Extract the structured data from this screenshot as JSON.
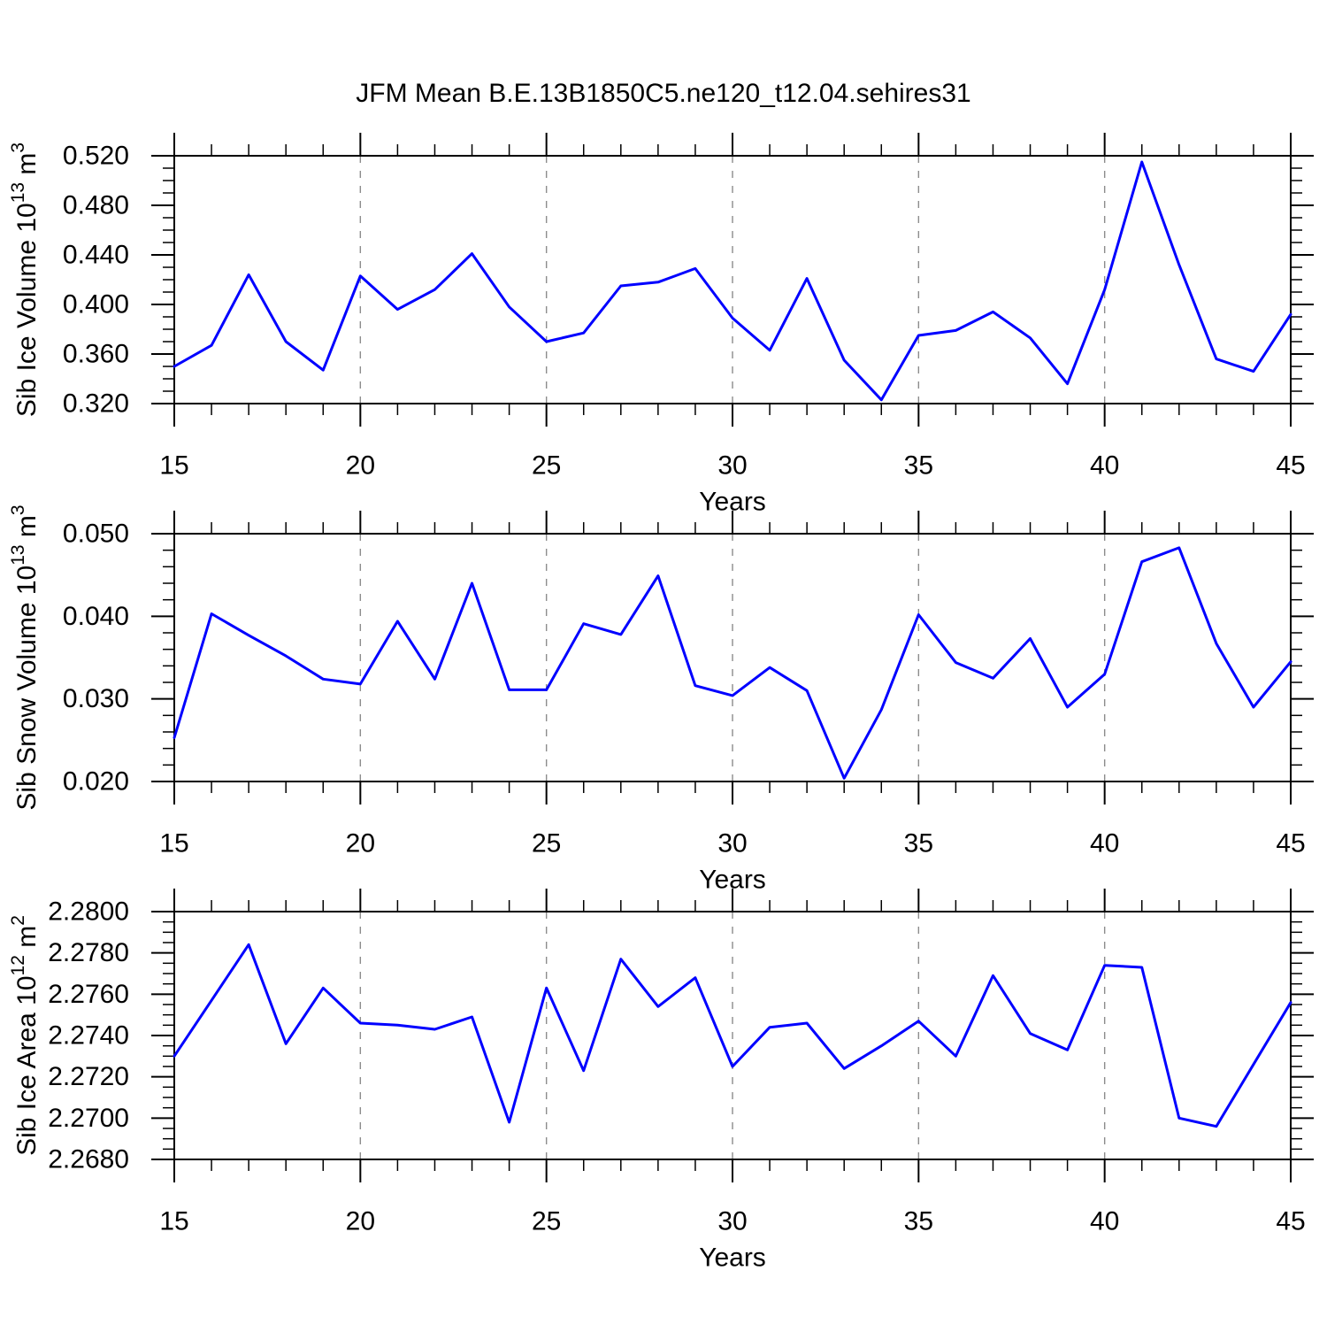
{
  "title": "JFM Mean B.E.13B1850C5.ne120_t12.04.sehires31",
  "line_color": "#0000ff",
  "grid_color": "#8c8c8c",
  "frame_color": "#000000",
  "chart_data": [
    {
      "type": "line",
      "key": "sib-ice-volume",
      "ylabel": "Sib Ice Volume 10^13 m^3",
      "ylabel_parts": [
        {
          "t": "Sib Ice Volume 10"
        },
        {
          "t": "13",
          "sup": true
        },
        {
          "t": " m"
        },
        {
          "t": "3",
          "sup": true
        }
      ],
      "xlabel": "Years",
      "xlim": [
        15,
        45
      ],
      "ylim": [
        0.32,
        0.52
      ],
      "ytick_step": 0.04,
      "ytick_minor": 0.01,
      "xtick_minor": 1,
      "grid_years": [
        20,
        25,
        30,
        35,
        40
      ],
      "yticks": [
        {
          "v": 0.52,
          "label": "0.520"
        },
        {
          "v": 0.48,
          "label": "0.480"
        },
        {
          "v": 0.44,
          "label": "0.440"
        },
        {
          "v": 0.4,
          "label": "0.400"
        },
        {
          "v": 0.36,
          "label": "0.360"
        },
        {
          "v": 0.32,
          "label": "0.320"
        }
      ],
      "xticks": [
        {
          "v": 15,
          "label": "15"
        },
        {
          "v": 20,
          "label": "20"
        },
        {
          "v": 25,
          "label": "25"
        },
        {
          "v": 30,
          "label": "30"
        },
        {
          "v": 35,
          "label": "35"
        },
        {
          "v": 40,
          "label": "40"
        },
        {
          "v": 45,
          "label": "45"
        }
      ],
      "x": [
        15,
        16,
        17,
        18,
        19,
        20,
        21,
        22,
        23,
        24,
        25,
        26,
        27,
        28,
        29,
        30,
        31,
        32,
        33,
        34,
        35,
        36,
        37,
        38,
        39,
        40,
        41,
        42,
        43,
        44,
        45
      ],
      "values": [
        0.35,
        0.367,
        0.424,
        0.37,
        0.347,
        0.423,
        0.396,
        0.412,
        0.441,
        0.398,
        0.37,
        0.377,
        0.415,
        0.418,
        0.429,
        0.389,
        0.363,
        0.421,
        0.355,
        0.323,
        0.375,
        0.379,
        0.394,
        0.373,
        0.336,
        0.412,
        0.515,
        0.432,
        0.356,
        0.346,
        0.392
      ]
    },
    {
      "type": "line",
      "key": "sib-snow-volume",
      "ylabel": "Sib Snow Volume 10^13 m^3",
      "ylabel_parts": [
        {
          "t": "Sib Snow Volume 10"
        },
        {
          "t": "13",
          "sup": true
        },
        {
          "t": " m"
        },
        {
          "t": "3",
          "sup": true
        }
      ],
      "xlabel": "Years",
      "xlim": [
        15,
        45
      ],
      "ylim": [
        0.02,
        0.05
      ],
      "ytick_step": 0.01,
      "ytick_minor": 0.002,
      "xtick_minor": 1,
      "grid_years": [
        20,
        25,
        30,
        35,
        40
      ],
      "yticks": [
        {
          "v": 0.05,
          "label": "0.050"
        },
        {
          "v": 0.04,
          "label": "0.040"
        },
        {
          "v": 0.03,
          "label": "0.030"
        },
        {
          "v": 0.02,
          "label": "0.020"
        }
      ],
      "xticks": [
        {
          "v": 15,
          "label": "15"
        },
        {
          "v": 20,
          "label": "20"
        },
        {
          "v": 25,
          "label": "25"
        },
        {
          "v": 30,
          "label": "30"
        },
        {
          "v": 35,
          "label": "35"
        },
        {
          "v": 40,
          "label": "40"
        },
        {
          "v": 45,
          "label": "45"
        }
      ],
      "x": [
        15,
        16,
        17,
        18,
        19,
        20,
        21,
        22,
        23,
        24,
        25,
        26,
        27,
        28,
        29,
        30,
        31,
        32,
        33,
        34,
        35,
        36,
        37,
        38,
        39,
        40,
        41,
        42,
        43,
        44,
        45
      ],
      "values": [
        0.0253,
        0.0403,
        0.0377,
        0.0352,
        0.0324,
        0.0318,
        0.0394,
        0.0324,
        0.044,
        0.0311,
        0.0311,
        0.0391,
        0.0378,
        0.0449,
        0.0316,
        0.0304,
        0.0338,
        0.031,
        0.0204,
        0.0287,
        0.0402,
        0.0344,
        0.0325,
        0.0373,
        0.029,
        0.033,
        0.0466,
        0.0483,
        0.0367,
        0.029,
        0.0345
      ]
    },
    {
      "type": "line",
      "key": "sib-ice-area",
      "ylabel": "Sib Ice Area 10^12 m^2",
      "ylabel_parts": [
        {
          "t": "Sib Ice Area 10"
        },
        {
          "t": "12",
          "sup": true
        },
        {
          "t": " m"
        },
        {
          "t": "2",
          "sup": true
        }
      ],
      "xlabel": "Years",
      "xlim": [
        15,
        45
      ],
      "ylim": [
        2.268,
        2.28
      ],
      "ytick_step": 0.002,
      "ytick_minor": 0.0005,
      "xtick_minor": 1,
      "grid_years": [
        20,
        25,
        30,
        35,
        40
      ],
      "yticks": [
        {
          "v": 2.28,
          "label": "2.2800"
        },
        {
          "v": 2.278,
          "label": "2.2780"
        },
        {
          "v": 2.276,
          "label": "2.2760"
        },
        {
          "v": 2.274,
          "label": "2.2740"
        },
        {
          "v": 2.272,
          "label": "2.2720"
        },
        {
          "v": 2.27,
          "label": "2.2700"
        },
        {
          "v": 2.268,
          "label": "2.2680"
        }
      ],
      "xticks": [
        {
          "v": 15,
          "label": "15"
        },
        {
          "v": 20,
          "label": "20"
        },
        {
          "v": 25,
          "label": "25"
        },
        {
          "v": 30,
          "label": "30"
        },
        {
          "v": 35,
          "label": "35"
        },
        {
          "v": 40,
          "label": "40"
        },
        {
          "v": 45,
          "label": "45"
        }
      ],
      "x": [
        15,
        16,
        17,
        18,
        19,
        20,
        21,
        22,
        23,
        24,
        25,
        26,
        27,
        28,
        29,
        30,
        31,
        32,
        33,
        34,
        35,
        36,
        37,
        38,
        39,
        40,
        41,
        42,
        43,
        44,
        45
      ],
      "values": [
        2.273,
        2.2757,
        2.2784,
        2.2736,
        2.2763,
        2.2746,
        2.2745,
        2.2743,
        2.2749,
        2.2698,
        2.2763,
        2.2723,
        2.2777,
        2.2754,
        2.2768,
        2.2725,
        2.2744,
        2.2746,
        2.2724,
        2.2735,
        2.2747,
        2.273,
        2.2769,
        2.2741,
        2.2733,
        2.2774,
        2.2773,
        2.27,
        2.2696,
        2.2726,
        2.2756
      ]
    }
  ]
}
